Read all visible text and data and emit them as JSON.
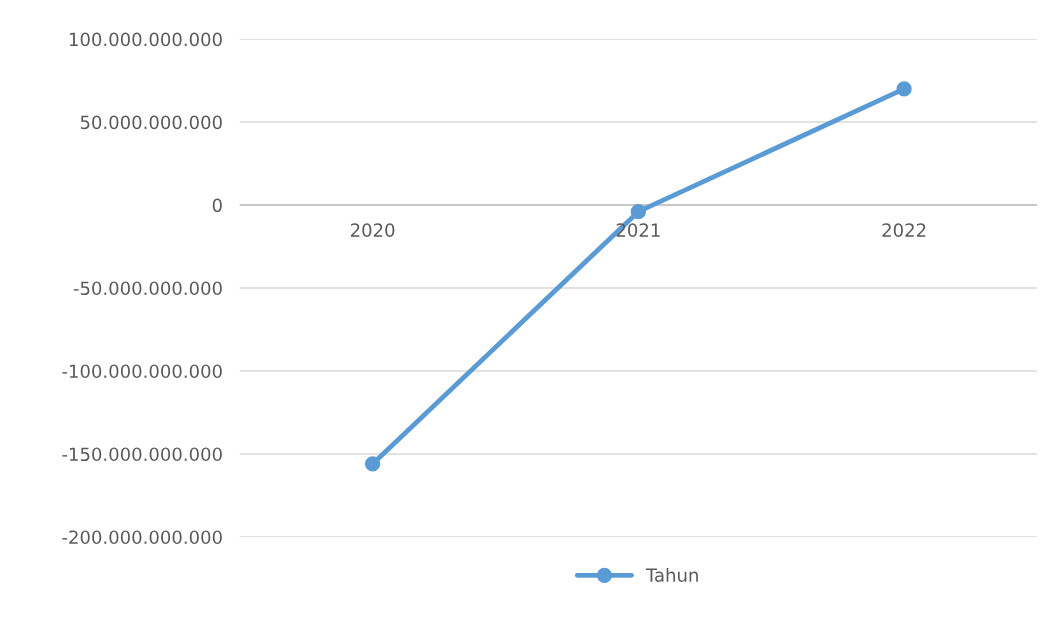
{
  "chart_data": {
    "type": "line",
    "categories": [
      "2020",
      "2021",
      "2022"
    ],
    "series": [
      {
        "name": "Tahun",
        "color": "#5b9bd5",
        "values": [
          -156000000000,
          -4000000000,
          70000000000
        ]
      }
    ],
    "ylim": [
      -200000000000,
      100000000000
    ],
    "yticks": [
      {
        "value": -200000000000,
        "label": "-200.000.000.000"
      },
      {
        "value": -150000000000,
        "label": "-150.000.000.000"
      },
      {
        "value": -100000000000,
        "label": "-100.000.000.000"
      },
      {
        "value": -50000000000,
        "label": "-50.000.000.000"
      },
      {
        "value": 0,
        "label": "0"
      },
      {
        "value": 50000000000,
        "label": "50.000.000.000"
      },
      {
        "value": 100000000000,
        "label": "100.000.000.000"
      }
    ],
    "grid": "y",
    "legend": "bottom",
    "marker": "circle",
    "line_style": "solid"
  }
}
